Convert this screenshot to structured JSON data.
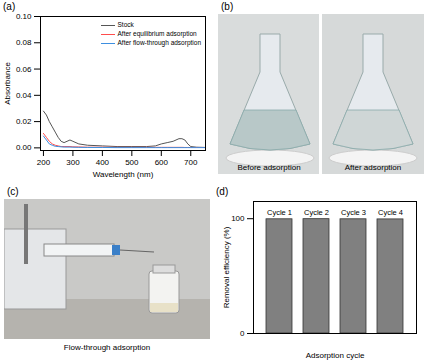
{
  "chart_data": [
    {
      "title": "(a)",
      "type": "line",
      "x_label": "Wavelength (nm)",
      "y_label": "Absorbance",
      "xlim": [
        190,
        750
      ],
      "xticks": [
        200,
        300,
        400,
        500,
        600,
        700
      ],
      "ylim": [
        -0.002,
        0.1
      ],
      "yticks": [
        {
          "value": 0,
          "label": "0.00"
        },
        {
          "value": 0.02,
          "label": "0.02"
        },
        {
          "value": 0.04,
          "label": "0.04"
        },
        {
          "value": 0.06,
          "label": "0.06"
        },
        {
          "value": 0.08,
          "label": "0.08"
        },
        {
          "value": 0.1,
          "label": "0.10"
        }
      ],
      "legend": "top-right",
      "x": [
        200,
        210,
        220,
        230,
        240,
        250,
        260,
        270,
        280,
        290,
        300,
        320,
        350,
        400,
        450,
        500,
        550,
        580,
        600,
        620,
        640,
        660,
        670,
        680,
        690,
        700,
        720,
        750
      ],
      "series": [
        {
          "name": "Stock",
          "color": "#555555",
          "values": [
            0.028,
            0.025,
            0.02,
            0.016,
            0.012,
            0.008,
            0.005,
            0.004,
            0.005,
            0.006,
            0.005,
            0.003,
            0.002,
            0.0015,
            0.001,
            0.001,
            0.001,
            0.0015,
            0.003,
            0.004,
            0.005,
            0.007,
            0.007,
            0.006,
            0.003,
            0.001,
            0.0005,
            0.0003
          ]
        },
        {
          "name": "After equilibrium adsorption",
          "color": "#ff4d4d",
          "values": [
            0.011,
            0.008,
            0.005,
            0.003,
            0.002,
            0.0015,
            0.001,
            0.001,
            0.001,
            0.001,
            0.0008,
            0.0007,
            0.0005,
            0.0005,
            0.0004,
            0.0004,
            0.0004,
            0.0004,
            0.0004,
            0.0004,
            0.0004,
            0.0004,
            0.0004,
            0.0003,
            0.0003,
            0.0003,
            0.0003,
            0.0003
          ]
        },
        {
          "name": "After flow-through adsorption",
          "color": "#3d8fe0",
          "values": [
            0.009,
            0.006,
            0.003,
            0.002,
            0.0012,
            0.001,
            0.0008,
            0.0006,
            0.0006,
            0.0006,
            0.0005,
            0.0004,
            0.0003,
            0.0003,
            0.0002,
            0.0002,
            0.0002,
            0.0002,
            0.0002,
            0.0002,
            0.0002,
            0.0002,
            0.0002,
            0.0002,
            0.0002,
            0.0002,
            0.0002,
            0.0002
          ]
        }
      ]
    },
    {
      "title": "(b)",
      "type": "image",
      "captions": [
        "Before adsorption",
        "After adsorption"
      ]
    },
    {
      "title": "(c)",
      "type": "image",
      "captions": [
        "Flow-through adsorption"
      ]
    },
    {
      "title": "(d)",
      "type": "bar",
      "x_label": "Adsorption cycle",
      "y_label": "Removal efficiency (%)",
      "categories": [
        "Cycle 1",
        "Cycle 2",
        "Cycle 3",
        "Cycle 4"
      ],
      "values": [
        99.5,
        99.6,
        99.5,
        99.4
      ],
      "color": "#808080",
      "ylim": [
        0,
        115
      ],
      "yticks": [
        0,
        100
      ],
      "tick_labels": "y"
    }
  ]
}
